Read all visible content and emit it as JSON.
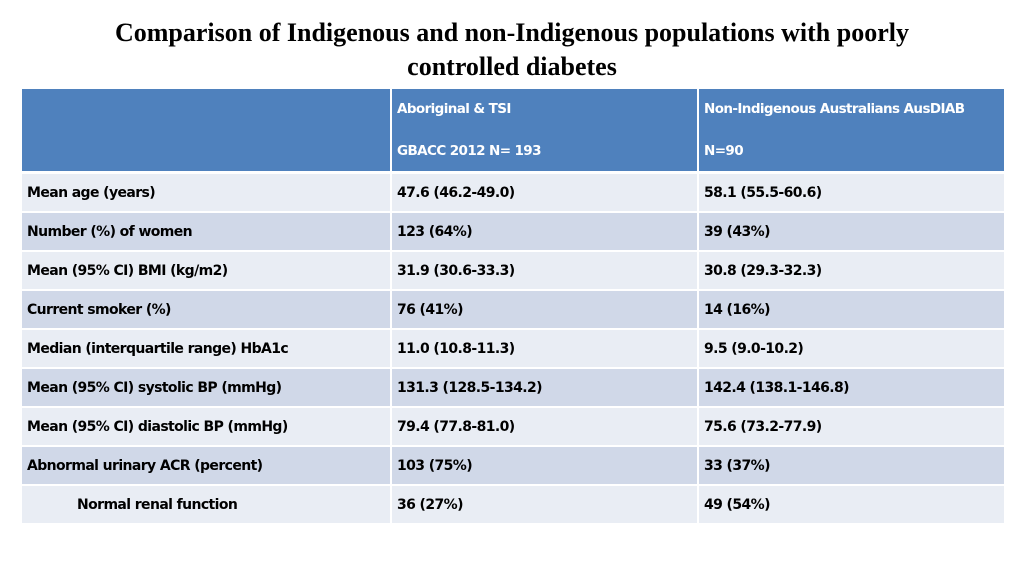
{
  "title_line1": "Comparison of Indigenous and non-Indigenous populations with poorly",
  "title_line2": "controlled diabetes",
  "table": {
    "header": {
      "col1": "",
      "col2_line1": "Aboriginal & TSI",
      "col2_line2": "GBACC 2012  N= 193",
      "col3_line1": "Non-Indigenous Australians  AusDIAB",
      "col3_line2": "N=90"
    },
    "rows": [
      {
        "label": "Mean age (years)",
        "aboriginal": "47.6 (46.2-49.0)",
        "non_indigenous": "58.1 (55.5-60.6)"
      },
      {
        "label": "Number (%) of women",
        "aboriginal": "123 (64%)",
        "non_indigenous": "39 (43%)"
      },
      {
        "label": "Mean (95% CI) BMI (kg/m2)",
        "aboriginal": "31.9 (30.6-33.3)",
        "non_indigenous": "30.8 (29.3-32.3)"
      },
      {
        "label": "Current smoker (%)",
        "aboriginal": "76 (41%)",
        "non_indigenous": "14 (16%)"
      },
      {
        "label": "Median (interquartile range) HbA1c",
        "aboriginal": "11.0 (10.8-11.3)",
        "non_indigenous": "9.5 (9.0-10.2)"
      },
      {
        "label": "Mean (95% CI) systolic BP (mmHg)",
        "aboriginal": "131.3 (128.5-134.2)",
        "non_indigenous": "142.4 (138.1-146.8)"
      },
      {
        "label": "Mean (95% CI) diastolic BP (mmHg)",
        "aboriginal": "79.4 (77.8-81.0)",
        "non_indigenous": "75.6 (73.2-77.9)"
      },
      {
        "label": "Abnormal urinary ACR (percent)",
        "aboriginal": "103 (75%)",
        "non_indigenous": "33 (37%)"
      },
      {
        "label": "Normal renal function",
        "aboriginal": "36 (27%)",
        "non_indigenous": "49 (54%)"
      }
    ]
  },
  "colors": {
    "header_bg": "#4f81bd",
    "row_light": "#e9edf4",
    "row_dark": "#d0d8e8"
  }
}
